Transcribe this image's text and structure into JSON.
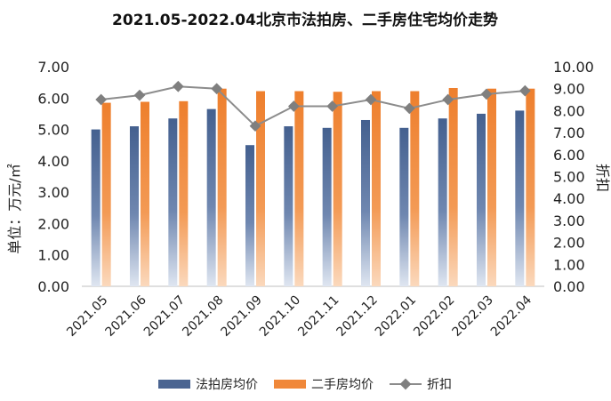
{
  "chart_data": {
    "type": "bar",
    "title": "2021.05-2022.04北京市法拍房、二手房住宅均价走势",
    "ylabel": "单位：万元/㎡",
    "y2label": "折扣",
    "ylim": [
      0,
      7
    ],
    "y2lim": [
      0,
      10
    ],
    "yticks": [
      "0.00",
      "1.00",
      "2.00",
      "3.00",
      "4.00",
      "5.00",
      "6.00",
      "7.00"
    ],
    "y2ticks": [
      "0.00",
      "1.00",
      "2.00",
      "3.00",
      "4.00",
      "5.00",
      "6.00",
      "7.00",
      "8.00",
      "9.00",
      "10.00"
    ],
    "categories": [
      "2021.05",
      "2021.06",
      "2021.07",
      "2021.08",
      "2021.09",
      "2021.10",
      "2021.11",
      "2021.12",
      "2022.01",
      "2022.02",
      "2022.03",
      "2022.04"
    ],
    "series": [
      {
        "name": "法拍房均价",
        "kind": "bar",
        "axis": "left",
        "color": "#4a6491",
        "values": [
          5.0,
          5.1,
          5.35,
          5.65,
          4.5,
          5.1,
          5.05,
          5.3,
          5.05,
          5.35,
          5.5,
          5.6
        ]
      },
      {
        "name": "二手房均价",
        "kind": "bar",
        "axis": "left",
        "color": "#f0883a",
        "values": [
          5.85,
          5.88,
          5.9,
          6.3,
          6.22,
          6.22,
          6.2,
          6.22,
          6.22,
          6.32,
          6.3,
          6.3
        ]
      },
      {
        "name": "折扣",
        "kind": "line",
        "axis": "right",
        "color": "#8c8c8c",
        "values": [
          8.5,
          8.7,
          9.1,
          9.0,
          7.3,
          8.2,
          8.2,
          8.5,
          8.1,
          8.5,
          8.75,
          8.9
        ]
      }
    ],
    "legend": "bottom",
    "grid": false
  }
}
